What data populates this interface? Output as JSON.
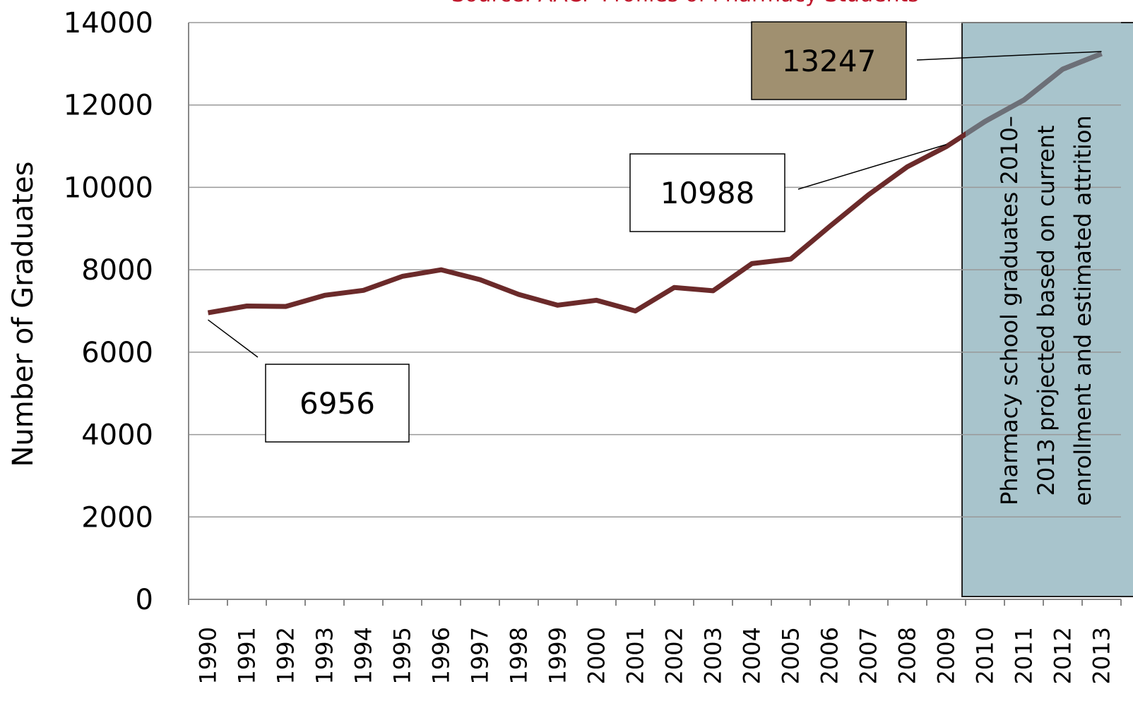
{
  "chart_data": {
    "type": "line",
    "subtitle": "Source: AACP Profiles of Pharmacy Students",
    "y_label": "Number of Graduates",
    "categories": [
      "1990",
      "1991",
      "1992",
      "1993",
      "1994",
      "1995",
      "1996",
      "1997",
      "1998",
      "1999",
      "2000",
      "2001",
      "2002",
      "2003",
      "2004",
      "2005",
      "2006",
      "2007",
      "2008",
      "2009",
      "2010",
      "2011",
      "2012",
      "2013"
    ],
    "values": [
      6956,
      7120,
      7110,
      7380,
      7500,
      7840,
      8000,
      7760,
      7400,
      7140,
      7260,
      7000,
      7570,
      7490,
      8150,
      8260,
      9050,
      9820,
      10500,
      10988,
      11600,
      12120,
      12870,
      13247
    ],
    "color": "#6b2a2a",
    "projected_color": "#6c7078",
    "ylim": [
      0,
      14000
    ],
    "yticks": [
      0,
      2000,
      4000,
      6000,
      8000,
      10000,
      12000,
      14000
    ],
    "grid": true,
    "annotation": [
      "Pharmacy school graduates 2010–",
      "2013 projected based on current",
      "enrollment and estimated attrition"
    ]
  }
}
